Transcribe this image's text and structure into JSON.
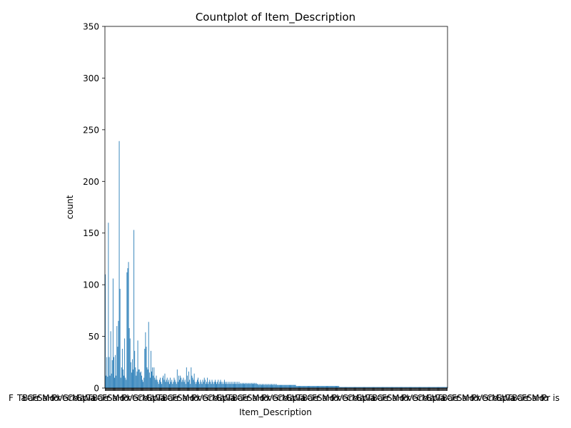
{
  "chart_data": {
    "type": "bar",
    "title": "Countplot of Item_Description",
    "xlabel": "Item_Description",
    "ylabel": "count",
    "ylim": [
      0,
      350
    ],
    "yticks": [
      0,
      50,
      100,
      150,
      200,
      250,
      300,
      350
    ],
    "grid": false,
    "legend": "none",
    "bar_color": "#1f77b4",
    "x_tick_labels_note": "x tick labels are overlapping and illegible",
    "x_tick_label_visible_start": "F",
    "x_tick_label_visible_end": "is",
    "series": [
      {
        "values": [
          110,
          12,
          30,
          11,
          160,
          30,
          12,
          55,
          14,
          27,
          106,
          30,
          10,
          32,
          12,
          60,
          40,
          65,
          239,
          96,
          10,
          20,
          38,
          18,
          12,
          48,
          10,
          8,
          112,
          116,
          122,
          58,
          48,
          25,
          15,
          28,
          18,
          153,
          36,
          20,
          12,
          16,
          46,
          18,
          18,
          15,
          16,
          12,
          8,
          6,
          10,
          38,
          54,
          40,
          20,
          18,
          64,
          15,
          10,
          36,
          16,
          20,
          12,
          20,
          10,
          8,
          12,
          8,
          6,
          4,
          8,
          10,
          6,
          4,
          10,
          12,
          8,
          14,
          6,
          8,
          10,
          6,
          8,
          4,
          10,
          6,
          8,
          4,
          6,
          10,
          8,
          6,
          4,
          18,
          6,
          12,
          8,
          12,
          10,
          6,
          8,
          10,
          6,
          8,
          4,
          20,
          12,
          6,
          16,
          8,
          4,
          20,
          12,
          10,
          8,
          14,
          6,
          4,
          6,
          8,
          10,
          6,
          4,
          8,
          6,
          4,
          8,
          6,
          10,
          8,
          4,
          6,
          10,
          4,
          6,
          8,
          6,
          4,
          8,
          6,
          4,
          6,
          8,
          6,
          4,
          6,
          8,
          4,
          6,
          8,
          6,
          4,
          6,
          4,
          8,
          6,
          4,
          6,
          4,
          6,
          4,
          6,
          4,
          6,
          4,
          6,
          4,
          6,
          4,
          6,
          4,
          6,
          4,
          6,
          4,
          5,
          4,
          5,
          4,
          5,
          4,
          5,
          4,
          5,
          4,
          5,
          4,
          5,
          4,
          5,
          4,
          5,
          4,
          5,
          4,
          5,
          4,
          4,
          3,
          4,
          3,
          4,
          3,
          4,
          3,
          4,
          3,
          4,
          3,
          4,
          3,
          4,
          3,
          4,
          3,
          4,
          3,
          4,
          3,
          4,
          3,
          4,
          3,
          3,
          3,
          3,
          3,
          3,
          3,
          3,
          3,
          3,
          3,
          3,
          3,
          3,
          3,
          3,
          3,
          3,
          3,
          3,
          3,
          3,
          3,
          3,
          3,
          2,
          2,
          2,
          2,
          2,
          2,
          2,
          2,
          2,
          2,
          2,
          2,
          2,
          2,
          2,
          2,
          2,
          2,
          2,
          2,
          2,
          2,
          2,
          2,
          2,
          2,
          2,
          2,
          2,
          2,
          2,
          2,
          2,
          2,
          2,
          2,
          2,
          2,
          2,
          2,
          2,
          2,
          2,
          2,
          2,
          2,
          2,
          2,
          2,
          2,
          2,
          2,
          2,
          2,
          2,
          2,
          1,
          1,
          1,
          1,
          1,
          1,
          1,
          1,
          1,
          1,
          1,
          1,
          1,
          1,
          1,
          1,
          1,
          1,
          1,
          1,
          1,
          1,
          1,
          1,
          1,
          1,
          1,
          1,
          1,
          1,
          1,
          1,
          1,
          1,
          1,
          1,
          1,
          1,
          1,
          1,
          1,
          1,
          1,
          1,
          1,
          1,
          1,
          1,
          1,
          1,
          1,
          1,
          1,
          1,
          1,
          1,
          1,
          1,
          1,
          1,
          1,
          1,
          1,
          1,
          1,
          1,
          1,
          1,
          1,
          1,
          1,
          1,
          1,
          1,
          1,
          1,
          1,
          1,
          1,
          1,
          1,
          1,
          1,
          1,
          1,
          1,
          1,
          1,
          1,
          1,
          1,
          1,
          1,
          1,
          1,
          1,
          1,
          1,
          1,
          1,
          1,
          1,
          1,
          1,
          1,
          1,
          1,
          1,
          1,
          1,
          1,
          1,
          1,
          1,
          1,
          1,
          1,
          1,
          1,
          1,
          1,
          1,
          1,
          1,
          1,
          1,
          1,
          1,
          1,
          1,
          1,
          1,
          1,
          1,
          1,
          1,
          1,
          1,
          1,
          1
        ]
      }
    ]
  }
}
